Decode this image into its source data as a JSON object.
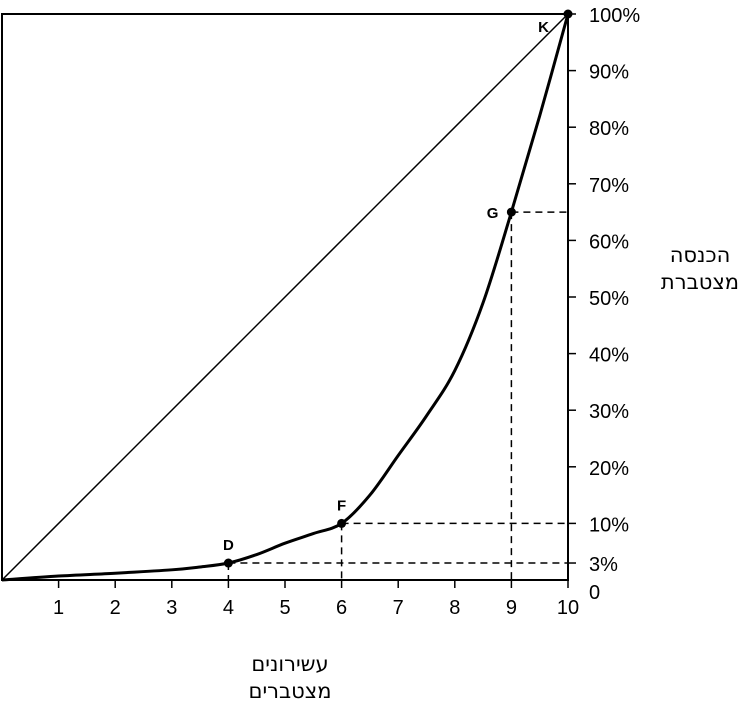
{
  "chart_data": {
    "type": "line",
    "ylabel_lines": [
      "הכנסה",
      "מצטברת"
    ],
    "xlabel_lines": [
      "עשירונים",
      "מצטברים"
    ],
    "xlim": [
      0,
      10
    ],
    "ylim": [
      0,
      100
    ],
    "x_ticks": [
      1,
      2,
      3,
      4,
      5,
      6,
      7,
      8,
      9,
      10
    ],
    "y_ticks": [
      {
        "value": 0,
        "label": "0"
      },
      {
        "value": 3,
        "label": "3%"
      },
      {
        "value": 10,
        "label": "10%"
      },
      {
        "value": 20,
        "label": "20%"
      },
      {
        "value": 30,
        "label": "30%"
      },
      {
        "value": 40,
        "label": "40%"
      },
      {
        "value": 50,
        "label": "50%"
      },
      {
        "value": 60,
        "label": "60%"
      },
      {
        "value": 70,
        "label": "70%"
      },
      {
        "value": 80,
        "label": "80%"
      },
      {
        "value": 90,
        "label": "90%"
      },
      {
        "value": 100,
        "label": "100%"
      }
    ],
    "equality_line": {
      "x": [
        0,
        10
      ],
      "y": [
        0,
        100
      ]
    },
    "lorenz_curve": {
      "x": [
        0,
        1,
        2,
        3,
        3.5,
        4,
        4.5,
        5,
        5.5,
        6,
        6.5,
        7,
        7.5,
        8,
        8.5,
        9,
        9.5,
        10
      ],
      "y": [
        0,
        0.7,
        1.2,
        1.8,
        2.3,
        3,
        4.5,
        6.5,
        8.2,
        10,
        15,
        22,
        29,
        37,
        49,
        65,
        82,
        100
      ]
    },
    "points": [
      {
        "label": "D",
        "x": 4,
        "y": 3,
        "guides": true
      },
      {
        "label": "F",
        "x": 6,
        "y": 10,
        "guides": true
      },
      {
        "label": "G",
        "x": 9,
        "y": 65,
        "guides": true
      },
      {
        "label": "K",
        "x": 10,
        "y": 100,
        "guides": false
      }
    ],
    "grid": false,
    "legend": "none"
  }
}
